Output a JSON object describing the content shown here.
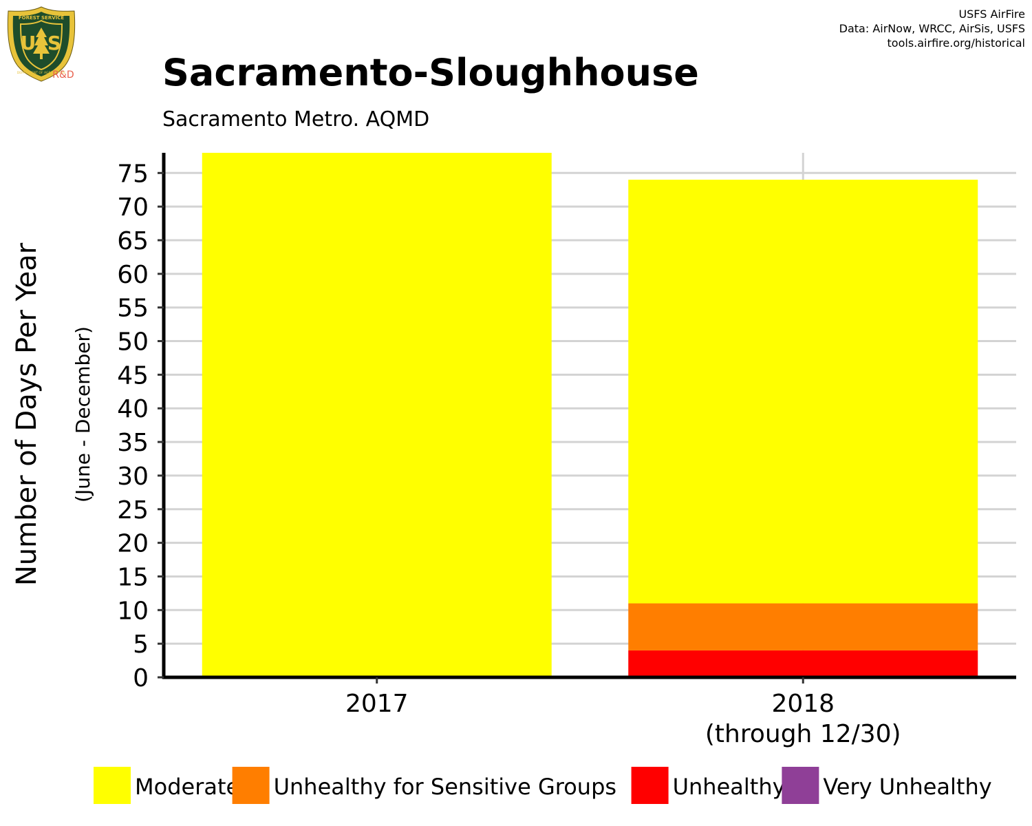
{
  "header": {
    "title": "Sacramento-Sloughhouse",
    "subtitle": "Sacramento Metro. AQMD",
    "credits": [
      "USFS AirFire",
      "Data: AirNow, WRCC, AirSis, USFS",
      "tools.airfire.org/historical"
    ]
  },
  "logo": {
    "icon": "usfs-shield-icon",
    "ring_text_top": "FOREST SERVICE",
    "ring_text_bottom": "DEPARTMENT OF AGRICULTURE",
    "letters_left": "U",
    "letters_right": "S",
    "tag": "R&D",
    "colors": {
      "shield": "#1e4d2b",
      "gold": "#e8c33a",
      "tag": "#e8604c"
    }
  },
  "chart_data": {
    "type": "bar",
    "stacked": true,
    "categories": [
      "2017",
      "2018"
    ],
    "category_sublabels": [
      "",
      "(through 12/30)"
    ],
    "series": [
      {
        "name": "Unhealthy",
        "color": "#ff0000",
        "values": [
          0,
          4
        ]
      },
      {
        "name": "Unhealthy for Sensitive Groups",
        "color": "#ff7e00",
        "values": [
          0,
          7
        ]
      },
      {
        "name": "Moderate",
        "color": "#ffff00",
        "values": [
          78,
          63
        ]
      },
      {
        "name": "Very Unhealthy",
        "color": "#8f3f97",
        "values": [
          0,
          0
        ]
      }
    ],
    "legend_order": [
      "Moderate",
      "Unhealthy for Sensitive Groups",
      "Unhealthy",
      "Very Unhealthy"
    ],
    "legend_placement": "bottom",
    "ylabel": "Number of Days Per Year",
    "ylabel_sub": "(June - December)",
    "ylim": [
      0,
      78
    ],
    "yticks": [
      0,
      5,
      10,
      15,
      20,
      25,
      30,
      35,
      40,
      45,
      50,
      55,
      60,
      65,
      70,
      75
    ],
    "grid": true
  }
}
